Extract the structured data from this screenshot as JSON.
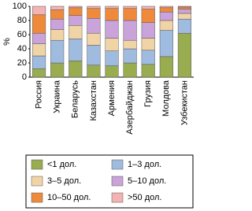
{
  "chart_data": {
    "type": "stacked_bar",
    "ylabel": "%",
    "categories": [
      "Россия",
      "Украина",
      "Беларусь",
      "Казахстан",
      "Армения",
      "Азербайджан",
      "Грузия",
      "Молдова",
      "Узбекистан"
    ],
    "ylim": [
      0,
      100
    ],
    "yticks": [
      0,
      20,
      40,
      60,
      80,
      100
    ],
    "series": [
      {
        "name": "<1 дол.",
        "color": "#99ad50",
        "values": [
          12,
          20,
          23,
          17,
          16,
          20,
          18,
          29,
          62
        ]
      },
      {
        "name": "1–3 дол.",
        "color": "#9fbce0",
        "values": [
          18,
          32,
          31,
          28,
          21,
          20,
          20,
          37,
          20
        ]
      },
      {
        "name": "3–5 дол.",
        "color": "#f1d4a6",
        "values": [
          17,
          15,
          19,
          17,
          18,
          12,
          17,
          14,
          8
        ]
      },
      {
        "name": "5–10 дол.",
        "color": "#c9a3d9",
        "values": [
          15,
          15,
          14,
          21,
          25,
          28,
          22,
          12,
          6
        ]
      },
      {
        "name": "10–50 дол.",
        "color": "#ef8a3c",
        "values": [
          26,
          13,
          11,
          14,
          17,
          17,
          19,
          6,
          3
        ]
      },
      {
        "name": ">50 дол.",
        "color": "#f4b3b3",
        "values": [
          12,
          5,
          2,
          3,
          3,
          3,
          4,
          2,
          1
        ]
      }
    ]
  }
}
